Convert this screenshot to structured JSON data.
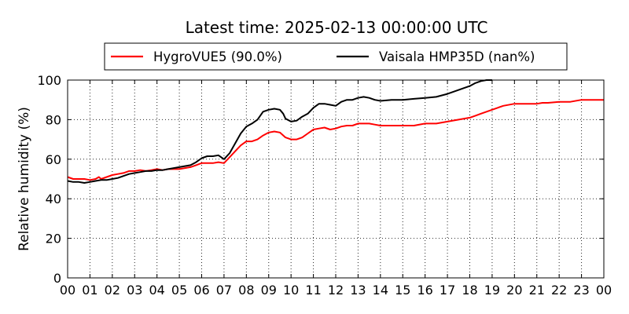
{
  "chart_data": {
    "type": "line",
    "title": "Latest time: 2025-02-13 00:00:00 UTC",
    "xlabel": "",
    "ylabel": "Relative humidity (%)",
    "xlim": [
      0,
      24
    ],
    "ylim": [
      0,
      100
    ],
    "x_ticks": [
      0,
      1,
      2,
      3,
      4,
      5,
      6,
      7,
      8,
      9,
      10,
      11,
      12,
      13,
      14,
      15,
      16,
      17,
      18,
      19,
      20,
      21,
      22,
      23,
      24
    ],
    "x_tick_labels": [
      "00",
      "01",
      "02",
      "03",
      "04",
      "05",
      "06",
      "07",
      "08",
      "09",
      "10",
      "11",
      "12",
      "13",
      "14",
      "15",
      "16",
      "17",
      "18",
      "19",
      "20",
      "21",
      "22",
      "23",
      "00"
    ],
    "y_ticks": [
      0,
      20,
      40,
      60,
      80,
      100
    ],
    "y_tick_labels": [
      "0",
      "20",
      "40",
      "60",
      "80",
      "100"
    ],
    "grid": true,
    "legend": {
      "placement": "top-center",
      "columns": 2
    },
    "series": [
      {
        "name": "HygroVUE5 (90.0%)",
        "color": "#ff0000",
        "x": [
          0,
          0.25,
          0.5,
          0.75,
          1,
          1.25,
          1.4,
          1.5,
          1.75,
          2,
          2.25,
          2.5,
          2.75,
          3,
          3.25,
          3.5,
          3.75,
          4,
          4.25,
          4.5,
          4.75,
          5,
          5.25,
          5.5,
          5.75,
          6,
          6.25,
          6.5,
          6.75,
          7,
          7.25,
          7.5,
          7.75,
          8,
          8.25,
          8.5,
          8.75,
          9,
          9.25,
          9.5,
          9.75,
          10,
          10.25,
          10.5,
          10.75,
          11,
          11.25,
          11.5,
          11.75,
          12,
          12.25,
          12.5,
          12.75,
          13,
          13.25,
          13.5,
          13.75,
          14,
          14.5,
          15,
          15.5,
          16,
          16.5,
          17,
          17.5,
          18,
          18.25,
          18.5,
          18.75,
          19,
          19.25,
          19.5,
          20,
          20.5,
          21,
          21.25,
          21.5,
          22,
          22.5,
          23,
          23.5,
          24
        ],
        "values": [
          51,
          50,
          50,
          50,
          49.5,
          50,
          51,
          50,
          51,
          52,
          52.5,
          53,
          54,
          54,
          54.5,
          54,
          54.5,
          55,
          54.5,
          55,
          55,
          55,
          55.5,
          56,
          57,
          58,
          58,
          58,
          58.5,
          58,
          61,
          64,
          67,
          69,
          69,
          70,
          72,
          73.5,
          74,
          73.5,
          71,
          70,
          70,
          71,
          73,
          75,
          75.5,
          76,
          75,
          75.5,
          76.5,
          77,
          77,
          78,
          78,
          78,
          77.5,
          77,
          77,
          77,
          77,
          78,
          78,
          79,
          80,
          81,
          82,
          83,
          84,
          85,
          86,
          87,
          88,
          88,
          88,
          88.5,
          88.5,
          89,
          89,
          90,
          90,
          90
        ]
      },
      {
        "name": "Vaisala HMP35D (nan%)",
        "color": "#000000",
        "x": [
          0,
          0.25,
          0.5,
          0.75,
          1,
          1.25,
          1.5,
          1.75,
          2,
          2.25,
          2.5,
          2.75,
          3,
          3.25,
          3.5,
          3.75,
          4,
          4.25,
          4.5,
          4.75,
          5,
          5.25,
          5.5,
          5.75,
          6,
          6.25,
          6.5,
          6.75,
          7,
          7.25,
          7.5,
          7.75,
          8,
          8.25,
          8.5,
          8.75,
          9,
          9.25,
          9.5,
          9.65,
          9.75,
          10,
          10.25,
          10.5,
          10.75,
          11,
          11.25,
          11.5,
          11.75,
          12,
          12.25,
          12.5,
          12.75,
          13,
          13.25,
          13.5,
          13.75,
          14,
          14.5,
          15,
          15.5,
          16,
          16.5,
          17,
          17.5,
          18,
          18.25,
          18.5,
          18.75,
          19
        ],
        "values": [
          49,
          48.5,
          48.5,
          48,
          48.5,
          49,
          49.5,
          49.5,
          50,
          50.5,
          51.5,
          52.5,
          53,
          53.5,
          54,
          54,
          54.5,
          54.5,
          55,
          55.5,
          56,
          56.5,
          57,
          58.5,
          60.5,
          61.5,
          61.5,
          62,
          60,
          63,
          68,
          73,
          76.5,
          78,
          80,
          84,
          85,
          85.5,
          85,
          83,
          80.5,
          79,
          79.5,
          81.5,
          83,
          86,
          88,
          88,
          87.5,
          87,
          89,
          90,
          90,
          91,
          91.5,
          91,
          90,
          89.5,
          90,
          90,
          90.5,
          91,
          91.5,
          93,
          95,
          97,
          98.5,
          99.5,
          100,
          100
        ]
      }
    ]
  }
}
